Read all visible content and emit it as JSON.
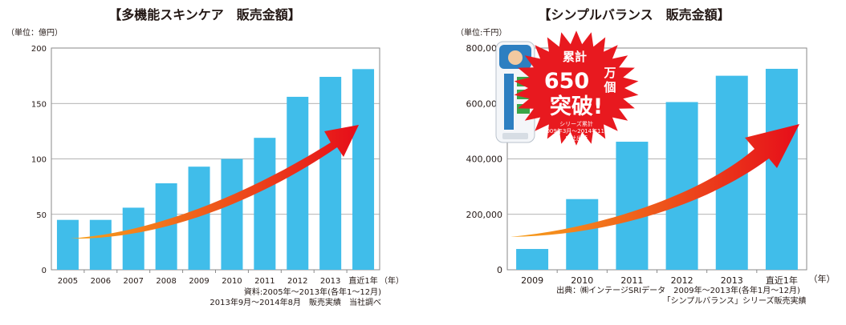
{
  "colors": {
    "bar": "#40bdea",
    "arrow_start": "#f7a21c",
    "arrow_end": "#e60d1a",
    "burst": "#e8191f"
  },
  "chart_data": [
    {
      "type": "bar",
      "title": "【多機能スキンケア　販売金額】",
      "unit_label": "（単位：億円）",
      "year_suffix": "（年）",
      "categories": [
        "2005",
        "2006",
        "2007",
        "2008",
        "2009",
        "2010",
        "2011",
        "2012",
        "2013",
        "直近1年"
      ],
      "values": [
        45,
        45,
        56,
        78,
        93,
        100,
        119,
        156,
        174,
        181
      ],
      "ylim": [
        0,
        200
      ],
      "yticks": [
        "0",
        "50",
        "100",
        "150",
        "200"
      ],
      "grid": true,
      "note_lines": [
        "資料:2005年～2013年(各年1～12月)",
        "2013年9月～2014年8月　販売実績　当社調べ"
      ]
    },
    {
      "type": "bar",
      "title": "【シンプルバランス　販売金額】",
      "unit_label": "（単位:千円）",
      "year_suffix": "（年）",
      "categories": [
        "2009",
        "2010",
        "2011",
        "2012",
        "2013",
        "直近1年"
      ],
      "values": [
        75000,
        255000,
        462000,
        605000,
        700000,
        725000
      ],
      "ylim": [
        0,
        800000
      ],
      "yticks": [
        "0",
        "200,000",
        "400,000",
        "600,000",
        "800,000"
      ],
      "grid": true,
      "note_lines": [
        "出典：㈱インテージSRIデータ　2009年～2013年(各年1月～12月)",
        "「シンプルバランス」シリーズ販売実績"
      ]
    }
  ],
  "badge": {
    "line1": "累計",
    "number": "650",
    "unit1": "万",
    "unit2": "個",
    "line3": "突破!",
    "small1": "シリーズ累計",
    "small2": "2009年3月～2014年11月",
    "small3": "自社出荷"
  }
}
